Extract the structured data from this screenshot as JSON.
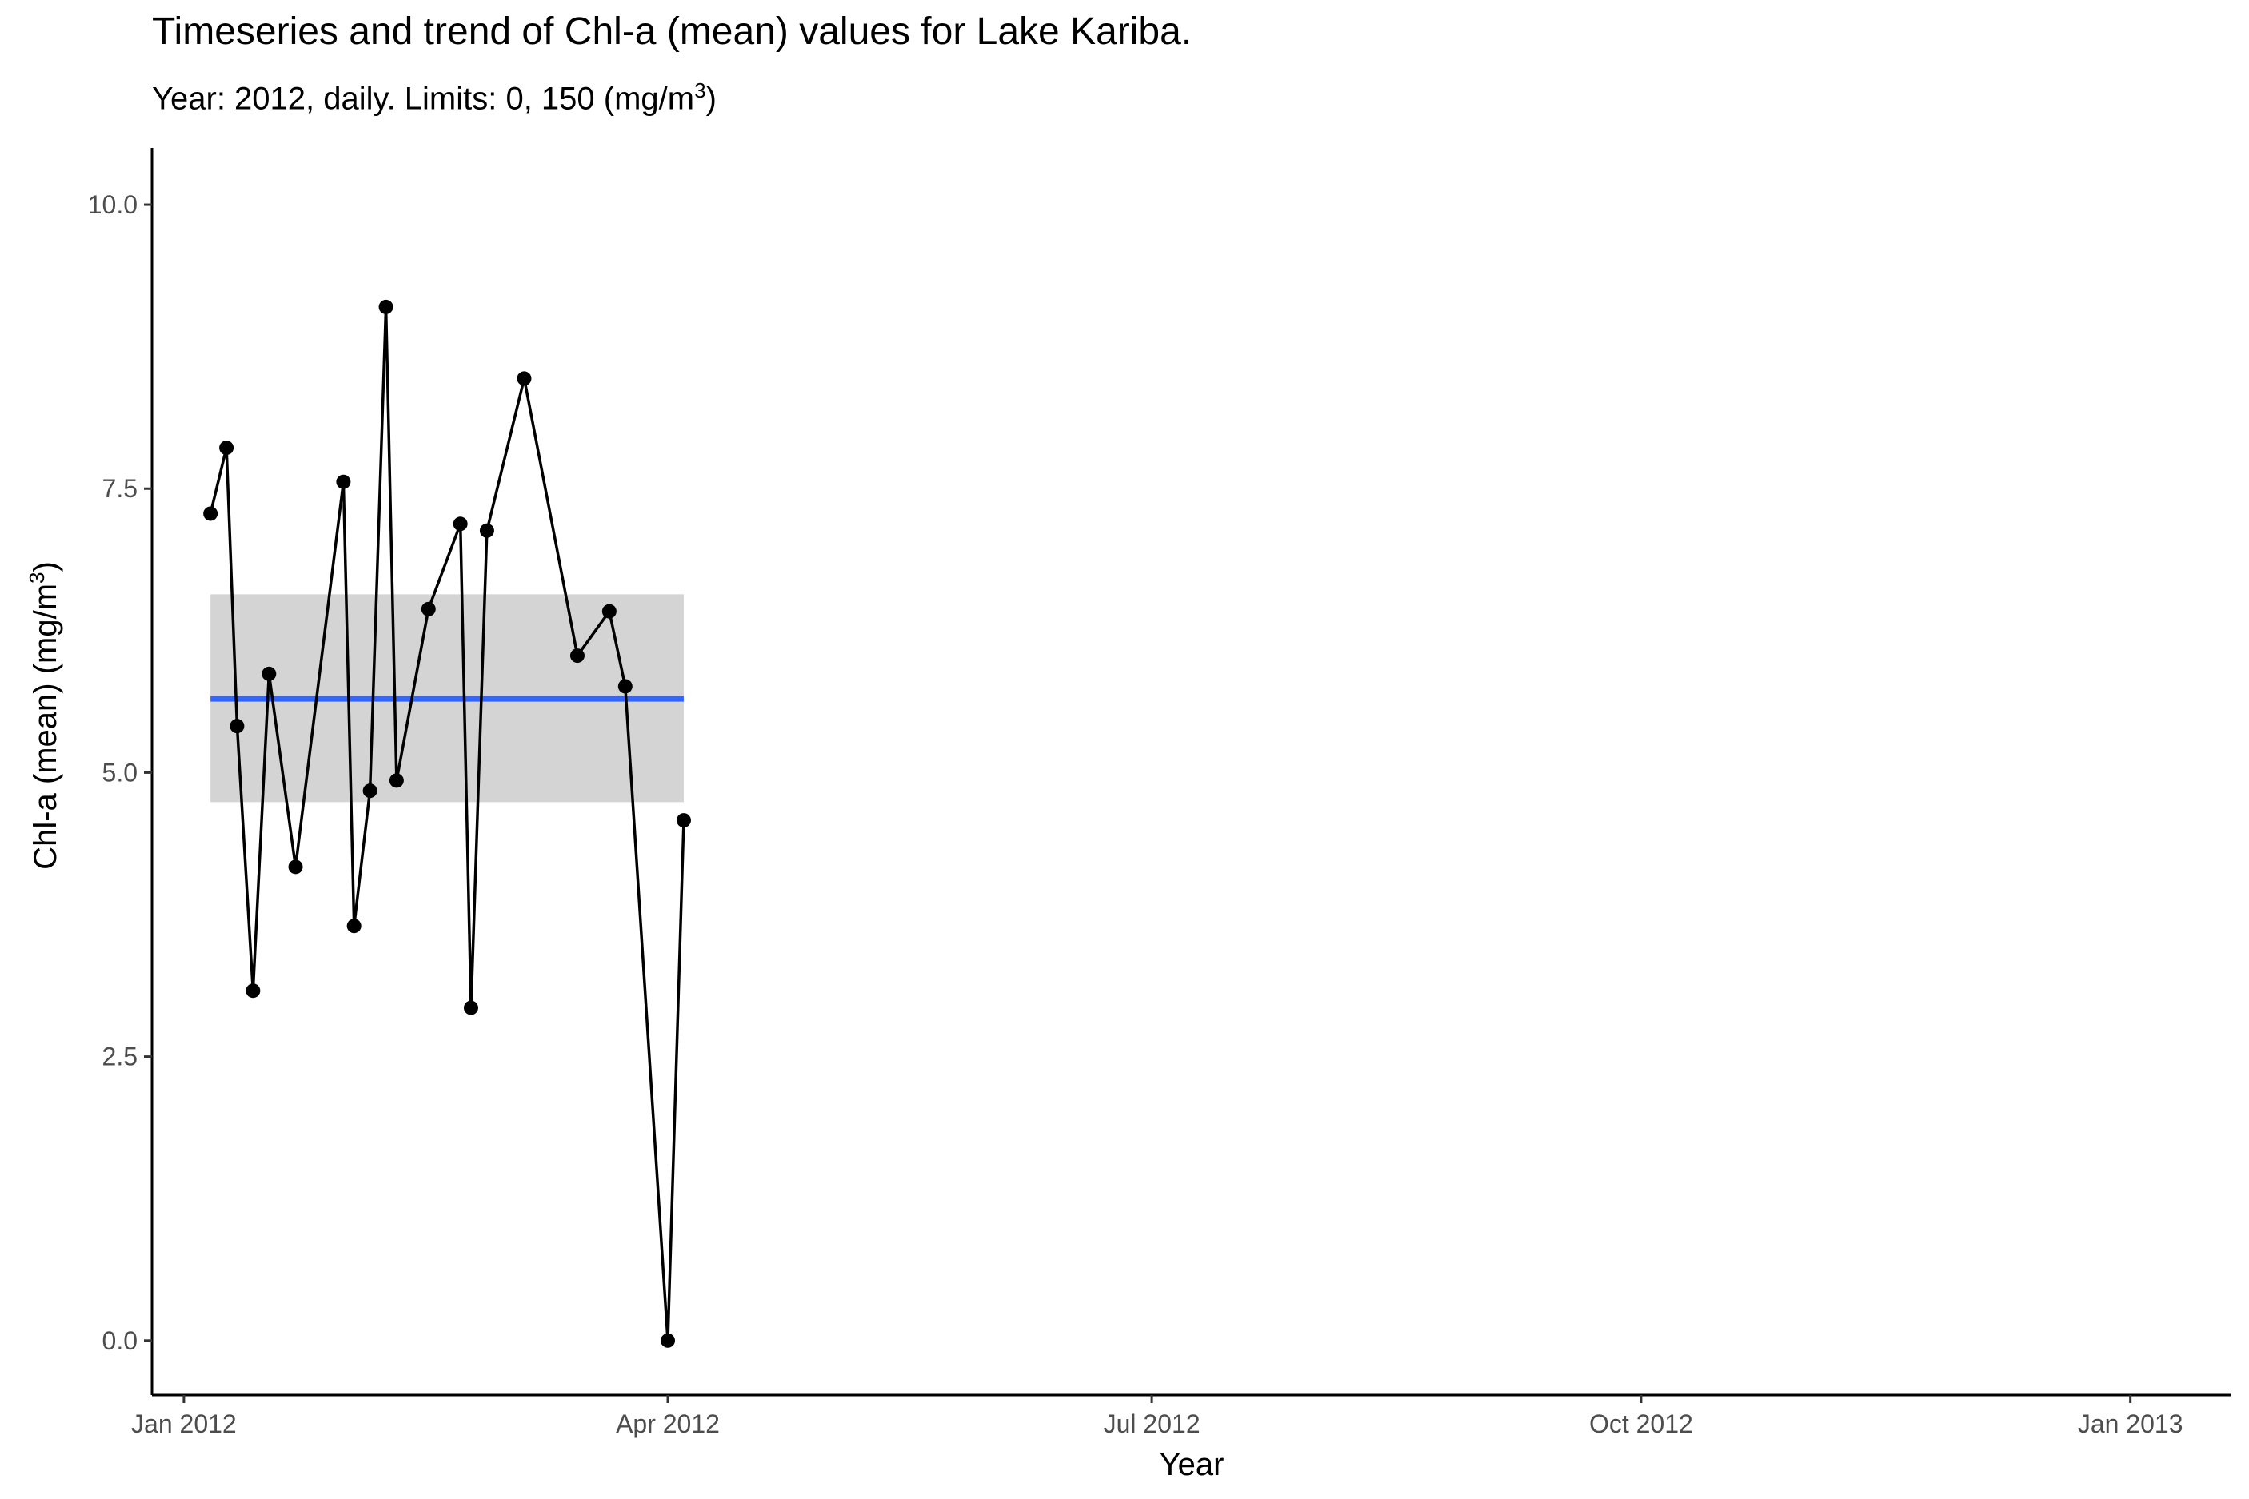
{
  "chart_data": {
    "type": "line",
    "title": "Timeseries and trend of Chl-a (mean) values for Lake Kariba.",
    "subtitle": "Year: 2012, daily. Limits: 0, 150 (mg/m3)",
    "xlabel": "Year",
    "ylabel": "Chl-a (mean) (mg/m3)",
    "xlim": [
      "2011-12-26",
      "2013-01-20"
    ],
    "ylim": [
      -0.48,
      10.5
    ],
    "x_ticks": [
      {
        "date": "2012-01-01",
        "label": "Jan 2012"
      },
      {
        "date": "2012-04-01",
        "label": "Apr 2012"
      },
      {
        "date": "2012-07-01",
        "label": "Jul 2012"
      },
      {
        "date": "2012-10-01",
        "label": "Oct 2012"
      },
      {
        "date": "2013-01-01",
        "label": "Jan 2013"
      }
    ],
    "y_ticks": [
      {
        "value": 0.0,
        "label": "0.0"
      },
      {
        "value": 2.5,
        "label": "2.5"
      },
      {
        "value": 5.0,
        "label": "5.0"
      },
      {
        "value": 7.5,
        "label": "7.5"
      },
      {
        "value": 10.0,
        "label": "10.0"
      }
    ],
    "series": [
      {
        "points": [
          {
            "x": "2012-01-06",
            "y": 7.28
          },
          {
            "x": "2012-01-09",
            "y": 7.86
          },
          {
            "x": "2012-01-11",
            "y": 5.41
          },
          {
            "x": "2012-01-14",
            "y": 3.08
          },
          {
            "x": "2012-01-17",
            "y": 5.87
          },
          {
            "x": "2012-01-22",
            "y": 4.17
          },
          {
            "x": "2012-01-31",
            "y": 7.56
          },
          {
            "x": "2012-02-02",
            "y": 3.65
          },
          {
            "x": "2012-02-05",
            "y": 4.84
          },
          {
            "x": "2012-02-08",
            "y": 9.1
          },
          {
            "x": "2012-02-10",
            "y": 4.93
          },
          {
            "x": "2012-02-16",
            "y": 6.44
          },
          {
            "x": "2012-02-22",
            "y": 7.19
          },
          {
            "x": "2012-02-24",
            "y": 2.93
          },
          {
            "x": "2012-02-27",
            "y": 7.13
          },
          {
            "x": "2012-03-05",
            "y": 8.47
          },
          {
            "x": "2012-03-15",
            "y": 6.03
          },
          {
            "x": "2012-03-21",
            "y": 6.42
          },
          {
            "x": "2012-03-24",
            "y": 5.76
          },
          {
            "x": "2012-04-01",
            "y": 0.0
          },
          {
            "x": "2012-04-04",
            "y": 4.58
          }
        ]
      }
    ],
    "trend": {
      "method": "linear",
      "x_start": "2012-01-06",
      "x_end": "2012-04-04",
      "y": 5.65,
      "ci_low": 4.74,
      "ci_high": 6.57,
      "line_color": "#3366ff",
      "band_color": "#d4d4d4"
    },
    "grid": false,
    "legend": "none"
  }
}
